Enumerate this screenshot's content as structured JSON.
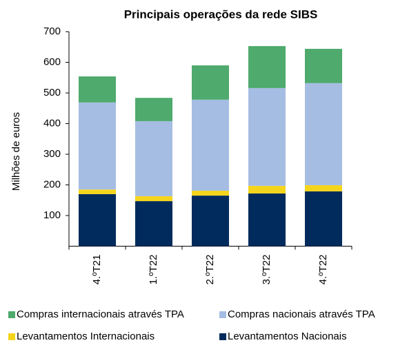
{
  "chart_data": {
    "type": "stacked_bar",
    "title": "Principais operações da rede SIBS",
    "y_label": "Milhões de euros",
    "categories": [
      "4.ºT21",
      "1.ºT22",
      "2.ºT22",
      "3.ºT22",
      "4.ºT22"
    ],
    "series": [
      {
        "name": "Levantamentos Nacionais",
        "color": "#002b5c",
        "values": [
          170,
          147,
          165,
          172,
          179
        ]
      },
      {
        "name": "Levantamentos Internacionais",
        "color": "#f5d51c",
        "values": [
          15,
          16,
          16,
          25,
          20
        ]
      },
      {
        "name": "Compras nacionais através TPA",
        "color": "#a6bde3",
        "values": [
          284,
          245,
          297,
          319,
          333
        ]
      },
      {
        "name": "Compras internacionais através TPA",
        "color": "#4faa6d",
        "values": [
          85,
          76,
          112,
          137,
          112
        ]
      }
    ],
    "ylim": [
      0,
      700
    ],
    "yticks": [
      100,
      200,
      300,
      400,
      500,
      600,
      700
    ],
    "grid": false
  }
}
